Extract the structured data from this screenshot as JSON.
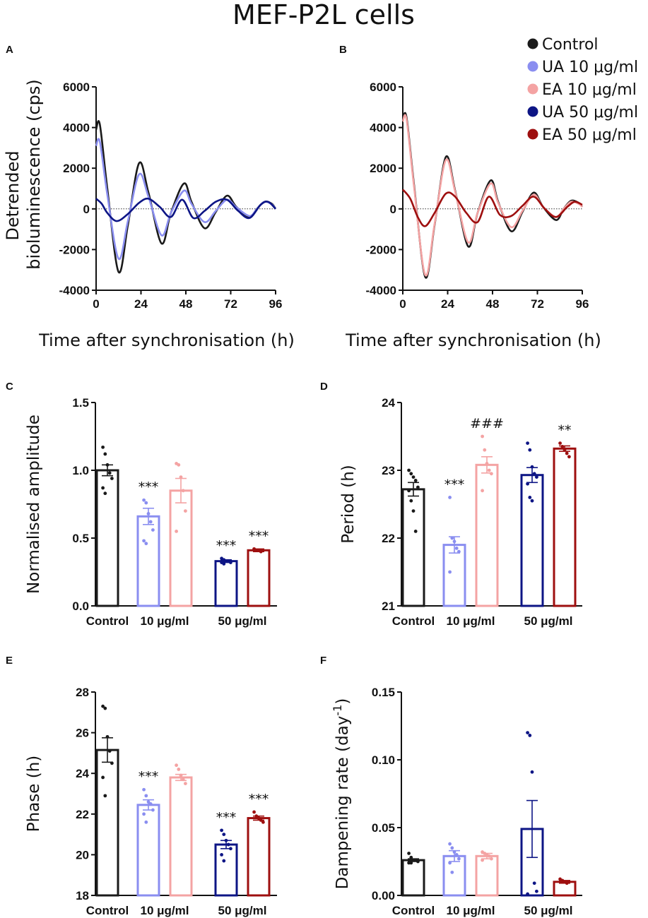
{
  "title": "MEF-P2L cells",
  "legend": [
    {
      "label": "Control",
      "color": "#1a1a1a"
    },
    {
      "label": "UA 10 μg/ml",
      "color": "#8a8ef0"
    },
    {
      "label": "EA 10 μg/ml",
      "color": "#f4a3a3"
    },
    {
      "label": "UA 50 μg/ml",
      "color": "#0d1585"
    },
    {
      "label": "EA 50 μg/ml",
      "color": "#9e0f0f"
    }
  ],
  "chart_data": [
    {
      "panel": "A",
      "type": "line",
      "ylabel": "Detrended bioluminescence (cps)",
      "xlabel": "Time after synchronisation (h)",
      "xlim": [
        0,
        96
      ],
      "ylim": [
        -4000,
        6000
      ],
      "xticks": [
        "0",
        "24",
        "48",
        "72",
        "96"
      ],
      "yticks": [
        "6000",
        "4000",
        "2000",
        "0",
        "-2000",
        "-4000"
      ],
      "series": [
        {
          "name": "Control",
          "color": "#1a1a1a",
          "x": [
            0,
            2,
            6,
            12,
            17,
            23,
            28,
            35,
            40,
            47,
            51,
            58,
            64,
            70,
            75,
            82,
            86,
            90,
            94,
            96
          ],
          "y": [
            3900,
            4150,
            1000,
            -3100,
            -800,
            2250,
            800,
            -1700,
            -200,
            1250,
            350,
            -950,
            -150,
            650,
            100,
            -400,
            0,
            350,
            250,
            0
          ]
        },
        {
          "name": "UA 10 μg/ml",
          "color": "#8a8ef0",
          "x": [
            0,
            2,
            6,
            12,
            17,
            23,
            28,
            35,
            40,
            47,
            51,
            58,
            64,
            70,
            75,
            82,
            86,
            90,
            94,
            96
          ],
          "y": [
            3100,
            3300,
            700,
            -2450,
            -600,
            1700,
            600,
            -1300,
            -200,
            900,
            250,
            -650,
            -100,
            450,
            80,
            -350,
            0,
            350,
            220,
            0
          ]
        },
        {
          "name": "UA 50 μg/ml",
          "color": "#0d1585",
          "x": [
            0,
            3,
            6,
            11,
            17,
            23,
            28,
            34,
            40,
            46,
            52,
            58,
            64,
            70,
            76,
            82,
            88,
            92,
            96
          ],
          "y": [
            500,
            250,
            -200,
            -600,
            -250,
            300,
            500,
            100,
            -400,
            450,
            -450,
            -100,
            350,
            450,
            -100,
            -450,
            200,
            350,
            0
          ]
        }
      ]
    },
    {
      "panel": "B",
      "type": "line",
      "ylabel": "",
      "xlabel": "Time after synchronisation (h)",
      "xlim": [
        0,
        96
      ],
      "ylim": [
        -4000,
        6000
      ],
      "xticks": [
        "0",
        "24",
        "48",
        "72",
        "96"
      ],
      "yticks": [
        "6000",
        "4000",
        "2000",
        "0",
        "-2000",
        "-4000"
      ],
      "series": [
        {
          "name": "Control",
          "color": "#1a1a1a",
          "x": [
            0,
            2,
            6,
            12,
            17,
            23,
            28,
            35,
            40,
            47,
            51,
            58,
            64,
            70,
            75,
            82,
            86,
            90,
            94,
            96
          ],
          "y": [
            4400,
            4500,
            1200,
            -3350,
            -800,
            2550,
            900,
            -1850,
            -200,
            1400,
            350,
            -1100,
            -150,
            800,
            100,
            -550,
            0,
            400,
            300,
            100
          ]
        },
        {
          "name": "EA 10 μg/ml",
          "color": "#f4a3a3",
          "x": [
            0,
            2,
            6,
            12,
            17,
            23,
            28,
            35,
            40,
            47,
            51,
            58,
            64,
            70,
            75,
            82,
            86,
            90,
            94,
            96
          ],
          "y": [
            4300,
            4400,
            1100,
            -3250,
            -750,
            2400,
            850,
            -1650,
            -200,
            1250,
            300,
            -900,
            -100,
            700,
            100,
            -400,
            0,
            350,
            250,
            100
          ]
        },
        {
          "name": "EA 50 μg/ml",
          "color": "#9e0f0f",
          "x": [
            0,
            4,
            8,
            12,
            17,
            23,
            28,
            34,
            40,
            46,
            52,
            58,
            64,
            70,
            76,
            82,
            88,
            92,
            96
          ],
          "y": [
            950,
            500,
            -400,
            -850,
            -200,
            750,
            600,
            -200,
            -650,
            600,
            -300,
            -350,
            150,
            600,
            0,
            -400,
            100,
            350,
            200
          ]
        }
      ]
    },
    {
      "panel": "C",
      "type": "bar",
      "ylabel": "Normalised amplitude",
      "ylim": [
        0,
        1.5
      ],
      "yticks": [
        "1.5",
        "1.0",
        "0.5",
        "0.0"
      ],
      "group_labels": [
        "Control",
        "10 μg/ml",
        "50 μg/ml"
      ],
      "bars": [
        {
          "name": "Control",
          "color": "#1a1a1a",
          "value": 1.0,
          "sem": 0.04,
          "points": [
            1.17,
            1.12,
            1.04,
            0.98,
            0.94,
            0.87,
            0.83
          ],
          "annotation": ""
        },
        {
          "name": "UA 10 μg/ml",
          "color": "#8a8ef0",
          "value": 0.66,
          "sem": 0.06,
          "points": [
            0.78,
            0.76,
            0.68,
            0.62,
            0.56,
            0.48,
            0.46
          ],
          "annotation": "***"
        },
        {
          "name": "EA 10 μg/ml",
          "color": "#f4a3a3",
          "value": 0.85,
          "sem": 0.09,
          "points": [
            1.05,
            1.04,
            0.95,
            0.85,
            0.7,
            0.55
          ],
          "annotation": ""
        },
        {
          "name": "UA 50 μg/ml",
          "color": "#0d1585",
          "value": 0.33,
          "sem": 0.01,
          "points": [
            0.35,
            0.34,
            0.33,
            0.33,
            0.32,
            0.32,
            0.31
          ],
          "annotation": "***"
        },
        {
          "name": "EA 50 μg/ml",
          "color": "#9e0f0f",
          "value": 0.41,
          "sem": 0.01,
          "points": [
            0.42,
            0.41,
            0.41,
            0.4
          ],
          "annotation": "***"
        }
      ]
    },
    {
      "panel": "D",
      "type": "bar",
      "ylabel": "Period (h)",
      "ylim": [
        21,
        24
      ],
      "yticks": [
        "24",
        "23",
        "22",
        "21"
      ],
      "group_labels": [
        "Control",
        "10 μg/ml",
        "50 μg/ml"
      ],
      "bars": [
        {
          "name": "Control",
          "color": "#1a1a1a",
          "value": 22.72,
          "sem": 0.1,
          "points": [
            23.0,
            22.95,
            22.9,
            22.85,
            22.75,
            22.7,
            22.55,
            22.4,
            22.1
          ],
          "annotation": ""
        },
        {
          "name": "UA 10 μg/ml",
          "color": "#8a8ef0",
          "value": 21.9,
          "sem": 0.12,
          "points": [
            22.6,
            22.0,
            21.95,
            21.85,
            21.8,
            21.5
          ],
          "annotation": "***"
        },
        {
          "name": "EA 10 μg/ml",
          "color": "#f4a3a3",
          "value": 23.08,
          "sem": 0.12,
          "points": [
            23.5,
            23.3,
            23.1,
            23.0,
            22.95,
            22.7
          ],
          "annotation": "###"
        },
        {
          "name": "UA 50 μg/ml",
          "color": "#0d1585",
          "value": 22.93,
          "sem": 0.11,
          "points": [
            23.4,
            23.3,
            23.05,
            22.95,
            22.9,
            22.8,
            22.6,
            22.55
          ],
          "annotation": ""
        },
        {
          "name": "EA 50 μg/ml",
          "color": "#9e0f0f",
          "value": 23.32,
          "sem": 0.04,
          "points": [
            23.4,
            23.35,
            23.3,
            23.25,
            23.2
          ],
          "annotation": "**"
        }
      ]
    },
    {
      "panel": "E",
      "type": "bar",
      "ylabel": "Phase (h)",
      "ylim": [
        18,
        28
      ],
      "yticks": [
        "28",
        "26",
        "24",
        "22",
        "20",
        "18"
      ],
      "group_labels": [
        "Control",
        "10 μg/ml",
        "50 μg/ml"
      ],
      "bars": [
        {
          "name": "Control",
          "color": "#1a1a1a",
          "value": 25.15,
          "sem": 0.6,
          "points": [
            27.3,
            27.2,
            25.8,
            25.1,
            24.5,
            23.8,
            22.9
          ],
          "annotation": ""
        },
        {
          "name": "UA 10 μg/ml",
          "color": "#8a8ef0",
          "value": 22.45,
          "sem": 0.25,
          "points": [
            23.2,
            22.9,
            22.6,
            22.5,
            22.2,
            22.0,
            21.6
          ],
          "annotation": "***"
        },
        {
          "name": "EA 10 μg/ml",
          "color": "#f4a3a3",
          "value": 23.8,
          "sem": 0.15,
          "points": [
            24.4,
            24.2,
            23.9,
            23.7,
            23.5
          ],
          "annotation": ""
        },
        {
          "name": "UA 50 μg/ml",
          "color": "#0d1585",
          "value": 20.5,
          "sem": 0.2,
          "points": [
            21.2,
            21.0,
            20.7,
            20.5,
            20.3,
            20.0,
            19.7
          ],
          "annotation": "***"
        },
        {
          "name": "EA 50 μg/ml",
          "color": "#9e0f0f",
          "value": 21.8,
          "sem": 0.1,
          "points": [
            22.1,
            21.9,
            21.8,
            21.7,
            21.6
          ],
          "annotation": "***"
        }
      ]
    },
    {
      "panel": "F",
      "type": "bar",
      "ylabel": "Dampening rate (day",
      "ylabel_sup": "-1",
      "ylabel_close": ")",
      "ylim": [
        0,
        0.15
      ],
      "yticks": [
        "0.15",
        "0.10",
        "0.05",
        "0.00"
      ],
      "group_labels": [
        "Control",
        "10 μg/ml",
        "50 μg/ml"
      ],
      "bars": [
        {
          "name": "Control",
          "color": "#1a1a1a",
          "value": 0.026,
          "sem": 0.001,
          "points": [
            0.031,
            0.028,
            0.026,
            0.026,
            0.025,
            0.024,
            0.024
          ],
          "annotation": ""
        },
        {
          "name": "UA 10 μg/ml",
          "color": "#8a8ef0",
          "value": 0.029,
          "sem": 0.004,
          "points": [
            0.038,
            0.035,
            0.032,
            0.03,
            0.027,
            0.024,
            0.017
          ],
          "annotation": ""
        },
        {
          "name": "EA 10 μg/ml",
          "color": "#f4a3a3",
          "value": 0.029,
          "sem": 0.002,
          "points": [
            0.032,
            0.031,
            0.03,
            0.029,
            0.027,
            0.026
          ],
          "annotation": ""
        },
        {
          "name": "UA 50 μg/ml",
          "color": "#0d1585",
          "value": 0.049,
          "sem": 0.021,
          "points": [
            0.12,
            0.118,
            0.091,
            0.009,
            0.003,
            0.001
          ],
          "annotation": ""
        },
        {
          "name": "EA 50 μg/ml",
          "color": "#9e0f0f",
          "value": 0.01,
          "sem": 0.001,
          "points": [
            0.012,
            0.011,
            0.01,
            0.009
          ],
          "annotation": ""
        }
      ]
    }
  ]
}
